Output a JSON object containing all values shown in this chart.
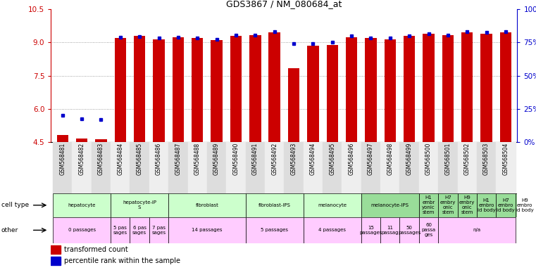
{
  "title": "GDS3867 / NM_080684_at",
  "samples": [
    "GSM568481",
    "GSM568482",
    "GSM568483",
    "GSM568484",
    "GSM568485",
    "GSM568486",
    "GSM568487",
    "GSM568488",
    "GSM568489",
    "GSM568490",
    "GSM568491",
    "GSM568492",
    "GSM568493",
    "GSM568494",
    "GSM568495",
    "GSM568496",
    "GSM568497",
    "GSM568498",
    "GSM568499",
    "GSM568500",
    "GSM568501",
    "GSM568502",
    "GSM568503",
    "GSM568504"
  ],
  "red_values": [
    4.8,
    4.65,
    4.6,
    9.2,
    9.3,
    9.15,
    9.25,
    9.2,
    9.1,
    9.3,
    9.35,
    9.45,
    7.85,
    8.85,
    8.9,
    9.25,
    9.2,
    9.15,
    9.3,
    9.4,
    9.35,
    9.45,
    9.4,
    9.45
  ],
  "blue_values": [
    5.7,
    5.55,
    5.5,
    9.25,
    9.28,
    9.2,
    9.25,
    9.2,
    9.15,
    9.35,
    9.35,
    9.5,
    8.95,
    8.95,
    9.0,
    9.3,
    9.2,
    9.2,
    9.3,
    9.4,
    9.35,
    9.5,
    9.45,
    9.5
  ],
  "ylim_left": [
    4.5,
    10.5
  ],
  "ylim_right": [
    0,
    100
  ],
  "yticks_left": [
    4.5,
    6.0,
    7.5,
    9.0,
    10.5
  ],
  "yticks_right": [
    0,
    25,
    50,
    75,
    100
  ],
  "bar_width": 0.6,
  "red_color": "#cc0000",
  "blue_color": "#0000cc",
  "bg_color": "#ffffff",
  "grid_color": "#888888",
  "left_label_color": "#cc0000",
  "right_label_color": "#0000cc",
  "cell_type_color": "#ccffcc",
  "other_color": "#ff99ff",
  "sample_label_bg_even": "#dddddd",
  "sample_label_bg_odd": "#eeeeee"
}
